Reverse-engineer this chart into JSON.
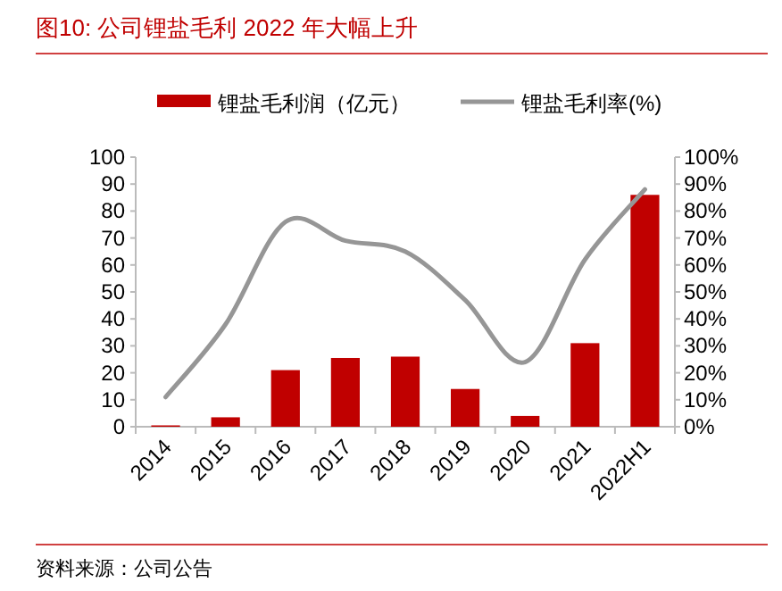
{
  "chart_data": {
    "type": "bar",
    "title": "图10:  公司锂盐毛利 2022 年大幅上升",
    "annotations": [
      "资料来源：公司公告"
    ],
    "categories": [
      "2014",
      "2015",
      "2016",
      "2017",
      "2018",
      "2019",
      "2020",
      "2021",
      "2022H1"
    ],
    "series": [
      {
        "name": "锂盐毛利润（亿元）",
        "color": "#c00000",
        "values": [
          0.5,
          3.5,
          21,
          25.5,
          26,
          14,
          4,
          31,
          86
        ]
      },
      {
        "name": "锂盐毛利率(%)",
        "type": "line",
        "axis": "y2",
        "color": "#969696",
        "values": [
          11,
          38,
          76,
          69,
          65,
          47,
          24,
          62,
          88
        ]
      }
    ],
    "ylim": [
      0,
      100
    ],
    "yticks": [
      0,
      10,
      20,
      30,
      40,
      50,
      60,
      70,
      80,
      90,
      100
    ],
    "y2lim": [
      0,
      100
    ],
    "y2ticks": [
      {
        "value": 0,
        "label": "0%"
      },
      {
        "value": 10,
        "label": "10%"
      },
      {
        "value": 20,
        "label": "20%"
      },
      {
        "value": 30,
        "label": "30%"
      },
      {
        "value": 40,
        "label": "40%"
      },
      {
        "value": 50,
        "label": "50%"
      },
      {
        "value": 60,
        "label": "60%"
      },
      {
        "value": 70,
        "label": "70%"
      },
      {
        "value": 80,
        "label": "80%"
      },
      {
        "value": 90,
        "label": "90%"
      },
      {
        "value": 100,
        "label": "100%"
      }
    ],
    "legend": "top",
    "grid": false
  }
}
